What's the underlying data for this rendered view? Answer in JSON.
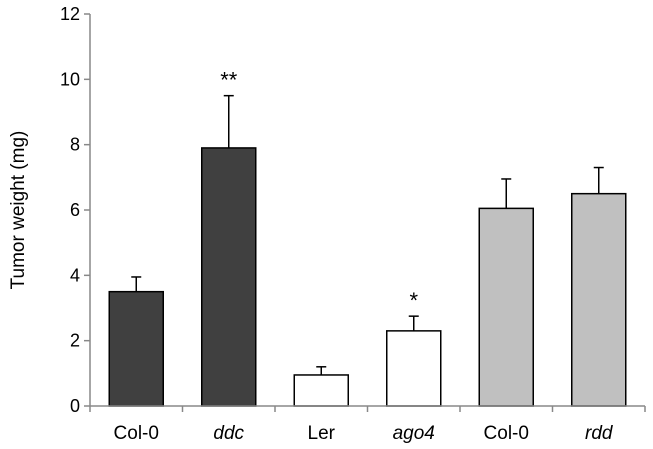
{
  "chart_data": {
    "type": "bar",
    "title": "",
    "xlabel": "",
    "ylabel": "Tumor weight (mg)",
    "ylim": [
      0,
      12
    ],
    "yticks": [
      "0",
      "2",
      "4",
      "6",
      "8",
      "10",
      "12"
    ],
    "grid": false,
    "categories": [
      "Col-0",
      "ddc",
      "Ler",
      "ago4",
      "Col-0",
      "rdd"
    ],
    "italic_categories": [
      false,
      true,
      false,
      true,
      false,
      true
    ],
    "values": [
      3.5,
      7.9,
      0.95,
      2.3,
      6.05,
      6.5
    ],
    "errors": [
      0.45,
      1.6,
      0.25,
      0.45,
      0.9,
      0.8
    ],
    "annotations": [
      "",
      "**",
      "",
      "*",
      "",
      ""
    ],
    "bar_colors": [
      "#404040",
      "#404040",
      "#ffffff",
      "#ffffff",
      "#c0c0c0",
      "#c0c0c0"
    ]
  }
}
